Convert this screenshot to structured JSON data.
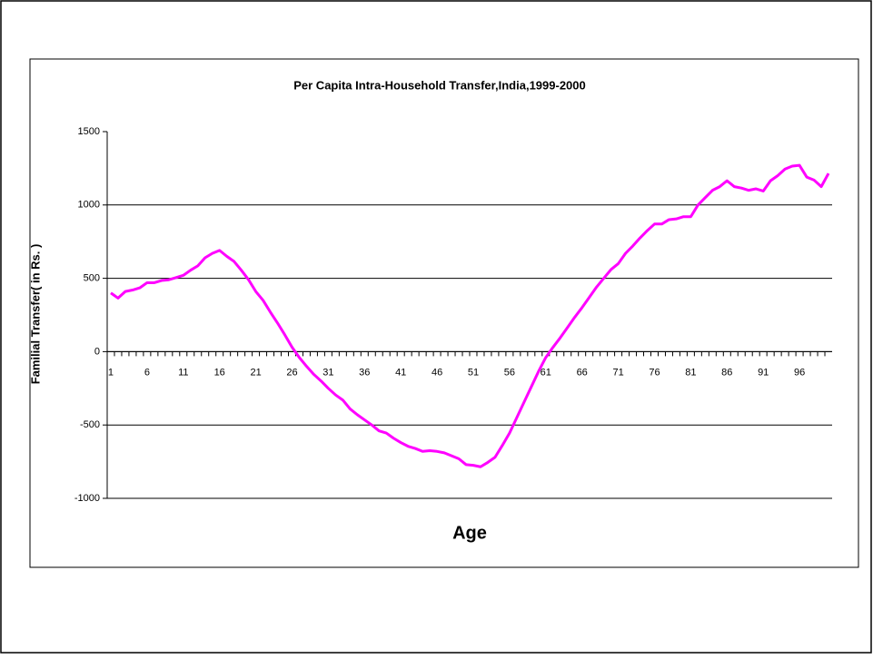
{
  "chart_data": {
    "type": "line",
    "title": "Per Capita Intra-Household Transfer,India,1999-2000",
    "x_label": "Age",
    "y_label": "Familial Transfer( in Rs. )",
    "x": [
      1,
      2,
      3,
      4,
      5,
      6,
      7,
      8,
      9,
      10,
      11,
      12,
      13,
      14,
      15,
      16,
      17,
      18,
      19,
      20,
      21,
      22,
      23,
      24,
      25,
      26,
      27,
      28,
      29,
      30,
      31,
      32,
      33,
      34,
      35,
      36,
      37,
      38,
      39,
      40,
      41,
      42,
      43,
      44,
      45,
      46,
      47,
      48,
      49,
      50,
      51,
      52,
      53,
      54,
      55,
      56,
      57,
      58,
      59,
      60,
      61,
      62,
      63,
      64,
      65,
      66,
      67,
      68,
      69,
      70,
      71,
      72,
      73,
      74,
      75,
      76,
      77,
      78,
      79,
      80,
      81,
      82,
      83,
      84,
      85,
      86,
      87,
      88,
      89,
      90,
      91,
      92,
      93,
      94,
      95,
      96,
      97,
      98,
      99,
      100
    ],
    "series": [
      {
        "name": "Familial Transfer",
        "color": "#ff00ff",
        "values": [
          400,
          365,
          410,
          420,
          435,
          470,
          470,
          485,
          490,
          505,
          520,
          555,
          585,
          640,
          670,
          690,
          650,
          615,
          555,
          490,
          410,
          350,
          270,
          195,
          115,
          30,
          -40,
          -100,
          -155,
          -200,
          -250,
          -295,
          -330,
          -390,
          -430,
          -465,
          -500,
          -540,
          -555,
          -590,
          -620,
          -645,
          -660,
          -680,
          -675,
          -680,
          -690,
          -710,
          -730,
          -770,
          -775,
          -785,
          -755,
          -720,
          -640,
          -555,
          -450,
          -345,
          -240,
          -135,
          -40,
          30,
          95,
          165,
          235,
          300,
          370,
          440,
          500,
          560,
          600,
          670,
          720,
          775,
          825,
          870,
          870,
          900,
          905,
          920,
          920,
          1000,
          1050,
          1100,
          1125,
          1165,
          1125,
          1115,
          1100,
          1110,
          1095,
          1165,
          1200,
          1245,
          1265,
          1270,
          1190,
          1170,
          1125,
          1215
        ]
      }
    ],
    "xlim": [
      0.5,
      100.5
    ],
    "xticks": [
      1,
      6,
      11,
      16,
      21,
      26,
      31,
      36,
      41,
      46,
      51,
      56,
      61,
      66,
      71,
      76,
      81,
      86,
      91,
      96
    ],
    "ylim": [
      -1000,
      1500
    ],
    "yticks": [
      -1000,
      -500,
      0,
      500,
      1000,
      1500
    ],
    "grid": true
  }
}
